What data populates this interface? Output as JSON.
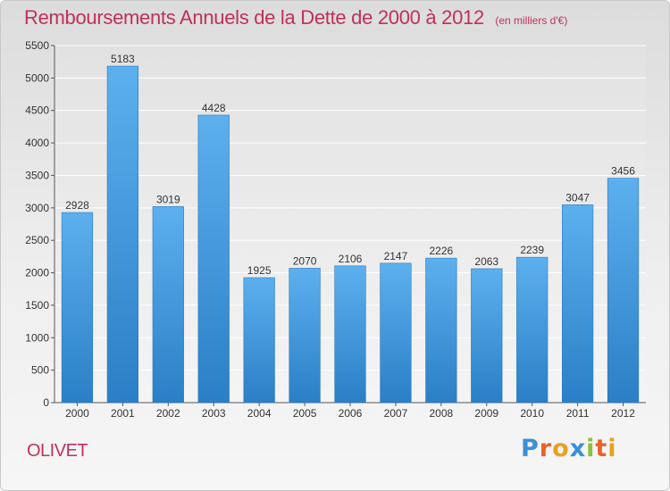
{
  "title": "Remboursements Annuels de la Dette de 2000 à 2012",
  "subtitle": "(en milliers d'€)",
  "commune": "OLIVET",
  "logo": {
    "text": "Proxiti",
    "colors": [
      "#3a8fd8",
      "#e8622a",
      "#e8a024",
      "#3a8fd8",
      "#8ac040",
      "#e8622a",
      "#e8a024"
    ]
  },
  "chart_data": {
    "type": "bar",
    "categories": [
      "2000",
      "2001",
      "2002",
      "2003",
      "2004",
      "2005",
      "2006",
      "2007",
      "2008",
      "2009",
      "2010",
      "2011",
      "2012"
    ],
    "values": [
      2928,
      5183,
      3019,
      4428,
      1925,
      2070,
      2106,
      2147,
      2226,
      2063,
      2239,
      3047,
      3456
    ],
    "ylim": [
      0,
      5500
    ],
    "yticks": [
      0,
      500,
      1000,
      1500,
      2000,
      2500,
      3000,
      3500,
      4000,
      4500,
      5000,
      5500
    ],
    "grid": true,
    "bar_color": "#4aa3e6"
  }
}
